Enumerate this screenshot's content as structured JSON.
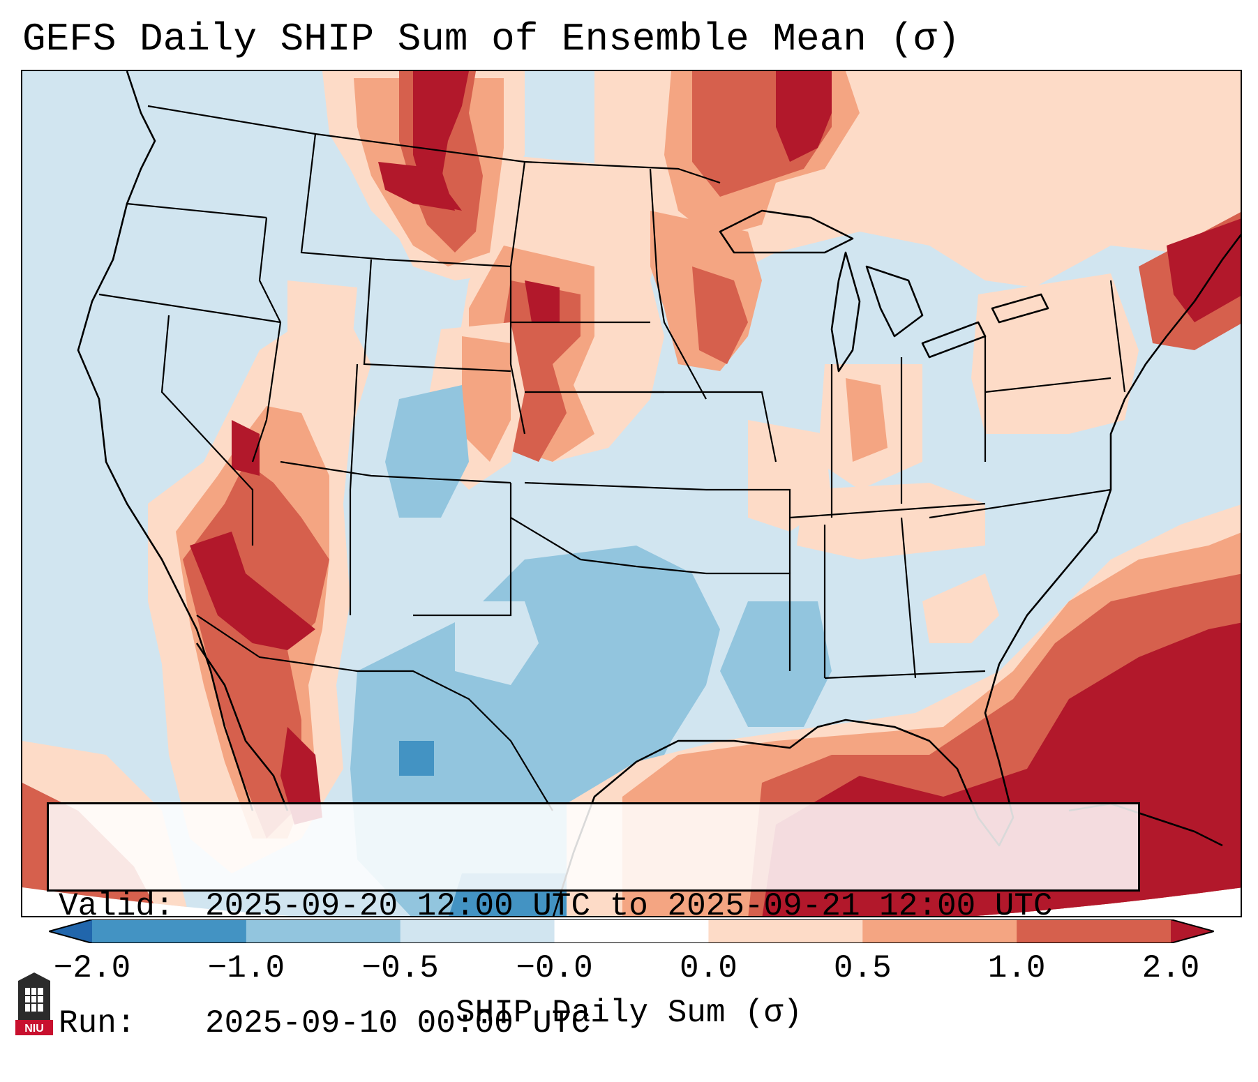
{
  "title": "GEFS Daily SHIP Sum of Ensemble Mean (σ)",
  "info": {
    "valid_key": "Valid:",
    "valid_value": "2025-09-20 12:00 UTC to 2025-09-21 12:00 UTC",
    "run_key": "Run:",
    "run_value": "2025-09-10 00:00 UTC"
  },
  "colorbar": {
    "label": "SHIP Daily Sum (σ)",
    "ticks": [
      "−2.0",
      "−1.0",
      "−0.5",
      "−0.0",
      "0.0",
      "0.5",
      "1.0",
      "2.0"
    ],
    "colors": [
      "#2166ac",
      "#4393c3",
      "#92c5de",
      "#d1e5f0",
      "#ffffff",
      "#fddbc7",
      "#f4a582",
      "#d6604d",
      "#b2182b"
    ],
    "bins": [
      {
        "range": "< -2.0",
        "color": "#2166ac"
      },
      {
        "range": "-2.0 to -1.0",
        "color": "#4393c3"
      },
      {
        "range": "-1.0 to -0.5",
        "color": "#92c5de"
      },
      {
        "range": "-0.5 to -0.0",
        "color": "#d1e5f0"
      },
      {
        "range": "-0.0 to 0.0",
        "color": "#ffffff"
      },
      {
        "range": "0.0 to 0.5",
        "color": "#fddbc7"
      },
      {
        "range": "0.5 to 1.0",
        "color": "#f4a582"
      },
      {
        "range": "1.0 to 2.0",
        "color": "#d6604d"
      },
      {
        "range": "> 2.0",
        "color": "#b2182b"
      }
    ]
  },
  "logo": {
    "text": "NIU",
    "color": "#c8102e"
  },
  "map": {
    "region": "CONUS",
    "ocean_color": "#d1e5f0",
    "coast_color": "#000000"
  }
}
